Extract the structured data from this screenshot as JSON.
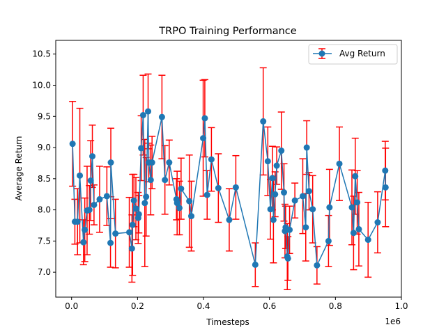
{
  "chart_data": {
    "type": "line",
    "title": "TRPO Training Performance",
    "xlabel": "Timesteps",
    "ylabel": "Average Return",
    "x_offset_label": "1e6",
    "xlim": [
      -0.048,
      1.0
    ],
    "ylim": [
      6.6,
      10.72
    ],
    "x_ticks": [
      0.0,
      0.2,
      0.4,
      0.6,
      0.8,
      1.0
    ],
    "x_tick_labels": [
      "0.0",
      "0.2",
      "0.4",
      "0.6",
      "0.8",
      "1.0"
    ],
    "y_ticks": [
      7.0,
      7.5,
      8.0,
      8.5,
      9.0,
      9.5,
      10.0,
      10.5
    ],
    "y_tick_labels": [
      "7.0",
      "7.5",
      "8.0",
      "8.5",
      "9.0",
      "9.5",
      "10.0",
      "10.5"
    ],
    "grid": false,
    "legend": {
      "position": "top-right",
      "entries": [
        "Avg Return"
      ]
    },
    "series": [
      {
        "name": "Avg Return",
        "color": "#1f77b4",
        "error_color": "#ff0000",
        "marker": "circle",
        "x": [
          0.003,
          0.01,
          0.018,
          0.025,
          0.036,
          0.04,
          0.047,
          0.054,
          0.058,
          0.063,
          0.068,
          0.085,
          0.107,
          0.118,
          0.119,
          0.133,
          0.175,
          0.183,
          0.185,
          0.189,
          0.195,
          0.202,
          0.204,
          0.211,
          0.217,
          0.222,
          0.226,
          0.232,
          0.234,
          0.24,
          0.244,
          0.274,
          0.283,
          0.296,
          0.318,
          0.32,
          0.327,
          0.332,
          0.357,
          0.363,
          0.399,
          0.404,
          0.411,
          0.424,
          0.445,
          0.478,
          0.498,
          0.557,
          0.581,
          0.595,
          0.603,
          0.609,
          0.612,
          0.617,
          0.622,
          0.636,
          0.644,
          0.647,
          0.649,
          0.654,
          0.656,
          0.661,
          0.677,
          0.701,
          0.71,
          0.713,
          0.72,
          0.731,
          0.744,
          0.779,
          0.782,
          0.812,
          0.85,
          0.855,
          0.86,
          0.866,
          0.871,
          0.899,
          0.928,
          0.951
        ],
        "y": [
          9.06,
          7.81,
          7.81,
          8.55,
          7.48,
          7.68,
          7.99,
          8.0,
          8.47,
          8.86,
          8.08,
          8.17,
          8.22,
          7.47,
          8.76,
          7.62,
          7.64,
          7.38,
          7.76,
          8.15,
          8.02,
          7.87,
          7.93,
          8.99,
          9.52,
          8.11,
          8.21,
          9.58,
          8.76,
          8.48,
          8.76,
          9.49,
          8.48,
          8.76,
          8.17,
          8.11,
          8.03,
          8.34,
          8.14,
          7.9,
          9.15,
          9.47,
          8.24,
          8.81,
          8.35,
          7.84,
          8.36,
          7.12,
          9.42,
          8.78,
          8.01,
          8.51,
          7.84,
          8.25,
          8.71,
          8.95,
          8.28,
          7.66,
          7.72,
          7.25,
          7.22,
          7.68,
          8.15,
          8.22,
          7.72,
          9.0,
          8.3,
          8.01,
          7.11,
          7.5,
          8.04,
          8.74,
          8.04,
          7.63,
          8.54,
          8.12,
          7.69,
          7.52,
          7.8,
          8.63
        ],
        "error": [
          0.68,
          0.36,
          0.53,
          1.08,
          0.36,
          0.51,
          0.71,
          0.39,
          0.64,
          0.5,
          0.32,
          0.53,
          0.47,
          0.39,
          0.55,
          0.55,
          0.56,
          0.54,
          0.81,
          0.42,
          0.5,
          0.41,
          0.3,
          0.52,
          0.64,
          1.02,
          0.63,
          0.6,
          0.31,
          0.56,
          0.42,
          0.67,
          0.55,
          0.36,
          0.33,
          0.51,
          0.43,
          0.49,
          0.74,
          0.56,
          0.93,
          0.62,
          0.39,
          0.51,
          0.55,
          0.5,
          0.51,
          0.35,
          0.86,
          0.55,
          0.48,
          0.51,
          0.69,
          0.36,
          0.3,
          0.62,
          0.46,
          0.43,
          0.34,
          0.53,
          0.35,
          0.38,
          0.28,
          0.6,
          0.54,
          0.43,
          0.3,
          0.54,
          0.3,
          0.41,
          0.61,
          0.59,
          0.6,
          0.59,
          0.61,
          0.51,
          0.59,
          0.6,
          0.49,
          0.47
        ]
      }
    ],
    "extra_point": {
      "x": 0.952,
      "y": 8.36,
      "error": 0.63
    }
  }
}
